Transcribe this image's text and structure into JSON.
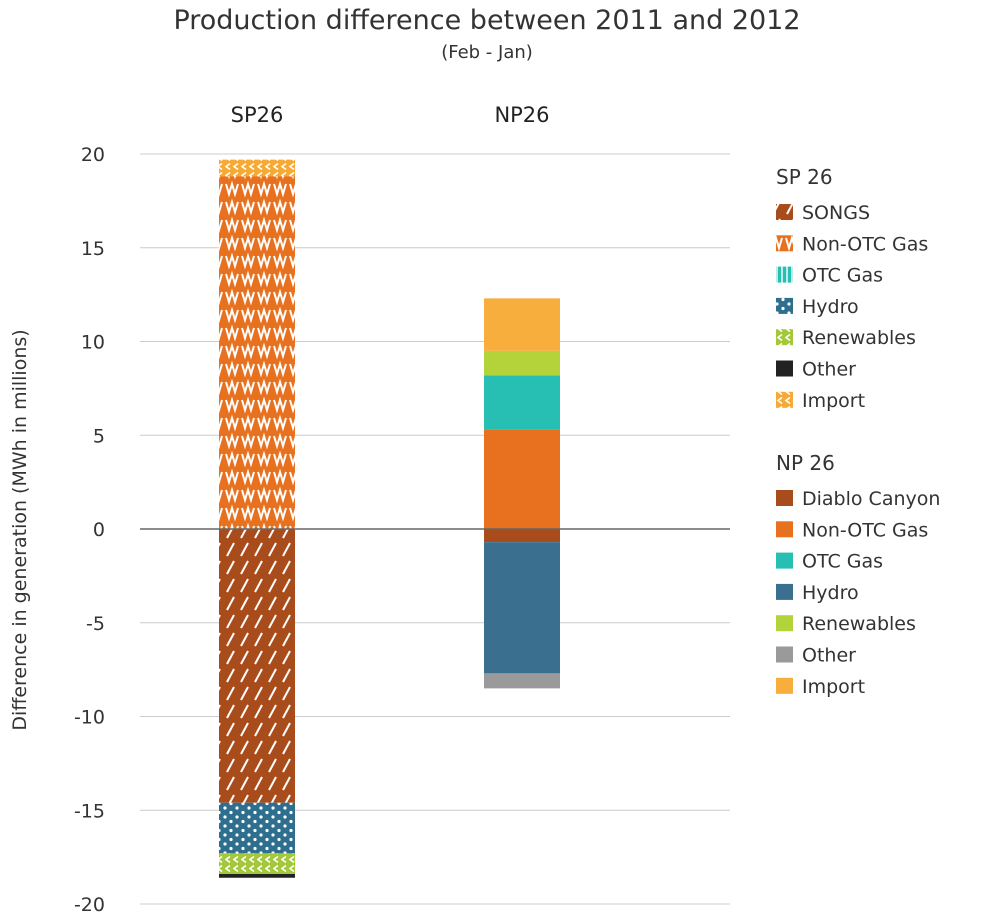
{
  "chart_data": {
    "type": "bar",
    "stacked": true,
    "title": "Production difference between 2011 and 2012",
    "subtitle": "(Feb - Jan)",
    "ylabel": "Difference in generation (MWh in millions)",
    "xlabel": "",
    "ylim": [
      -20,
      20
    ],
    "yticks": [
      20,
      15,
      10,
      5,
      0,
      -5,
      -10,
      -15,
      -20
    ],
    "grid": true,
    "legend_position": "right",
    "categories": [
      "SP26",
      "NP26"
    ],
    "groups": [
      {
        "category": "SP26",
        "legend_title": "SP 26",
        "series": [
          {
            "name": "SONGS",
            "value": -14.6,
            "color": "#a94c1b",
            "pattern": "diagonal"
          },
          {
            "name": "Non-OTC Gas",
            "value": 18.8,
            "color": "#e8711f",
            "pattern": "zigzag"
          },
          {
            "name": "OTC Gas",
            "value": 0,
            "color": "#27bfb3",
            "pattern": "vertical"
          },
          {
            "name": "Hydro",
            "value": -2.7,
            "color": "#2e6e8e",
            "pattern": "dots"
          },
          {
            "name": "Renewables",
            "value": -1.1,
            "color": "#a3c83a",
            "pattern": "chevron"
          },
          {
            "name": "Other",
            "value": -0.2,
            "color": "#222222",
            "pattern": "solid"
          },
          {
            "name": "Import",
            "value": 0.9,
            "color": "#f7a935",
            "pattern": "chevron"
          }
        ]
      },
      {
        "category": "NP26",
        "legend_title": "NP 26",
        "series": [
          {
            "name": "Diablo Canyon",
            "value": -0.7,
            "color": "#a94c1b",
            "pattern": "solid"
          },
          {
            "name": "Non-OTC Gas",
            "value": 5.3,
            "color": "#e8711f",
            "pattern": "solid"
          },
          {
            "name": "OTC Gas",
            "value": 2.9,
            "color": "#27bfb3",
            "pattern": "solid"
          },
          {
            "name": "Hydro",
            "value": -7.0,
            "color": "#3a6f8f",
            "pattern": "solid"
          },
          {
            "name": "Renewables",
            "value": 1.3,
            "color": "#b4d23a",
            "pattern": "solid"
          },
          {
            "name": "Other",
            "value": -0.8,
            "color": "#9a9a9a",
            "pattern": "solid"
          },
          {
            "name": "Import",
            "value": 2.8,
            "color": "#f7ae3c",
            "pattern": "solid"
          }
        ]
      }
    ]
  }
}
